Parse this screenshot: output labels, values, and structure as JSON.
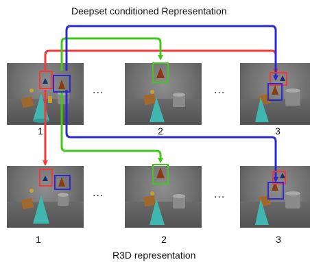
{
  "top_caption": "Deepset conditioned Representation",
  "bottom_caption": "R3D representation",
  "ellipsis": "...",
  "frame_labels": [
    "1",
    "2",
    "3"
  ],
  "colors": {
    "red": "#f03a3a",
    "green": "#3fc81a",
    "blue": "#2a2ad0"
  },
  "rows": [
    {
      "name": "deepset-row",
      "frames": [
        {
          "label": "1",
          "boxes": [
            "red",
            "blue"
          ]
        },
        {
          "label": "2",
          "boxes": [
            "green"
          ]
        },
        {
          "label": "3",
          "boxes": [
            "red",
            "blue"
          ]
        }
      ]
    },
    {
      "name": "r3d-row",
      "frames": [
        {
          "label": "1",
          "boxes": [
            "red",
            "blue"
          ]
        },
        {
          "label": "2",
          "boxes": [
            "green"
          ]
        },
        {
          "label": "3",
          "boxes": [
            "red",
            "blue"
          ]
        }
      ]
    }
  ]
}
